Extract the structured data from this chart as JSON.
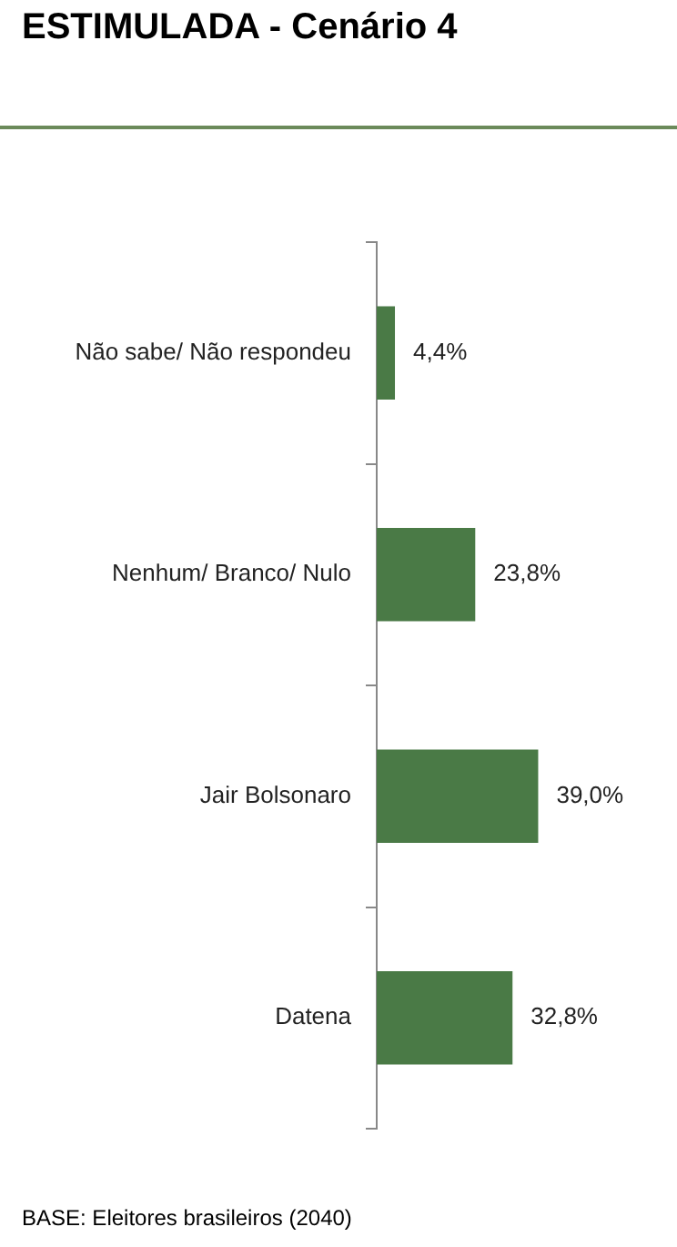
{
  "chart_data": {
    "type": "bar",
    "orientation": "horizontal",
    "title": "ESTIMULADA - Cenário 4",
    "categories": [
      "Não sabe/ Não respondeu",
      "Nenhum/ Branco/ Nulo",
      "Jair Bolsonaro",
      "Datena"
    ],
    "values": [
      4.4,
      23.8,
      39.0,
      32.8
    ],
    "value_labels": [
      "4,4%",
      "23,8%",
      "39,0%",
      "32,8%"
    ],
    "color": "#4a7a46",
    "tick_labels": "y",
    "legend": false,
    "annotations": [
      "BASE: Eleitores brasileiros (2040)"
    ]
  }
}
